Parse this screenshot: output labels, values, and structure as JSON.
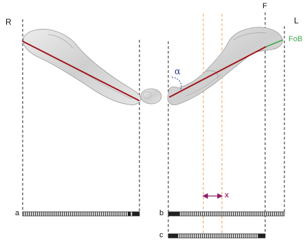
{
  "labels": {
    "right_side": "R",
    "left_side": "L",
    "femur_point": "F",
    "fob": "FoB",
    "angle": "α",
    "offset": "x",
    "scale_a": "a",
    "scale_b": "b",
    "scale_c": "c"
  },
  "colors": {
    "axis_line": "#a0161b",
    "fob_line": "#3fa84a",
    "guide_line": "#f0a050",
    "offset_arrow": "#8b1d6b",
    "offset_label": "#c0307a",
    "angle_arc": "#2a3a8c",
    "angle_label": "#2a3a8c",
    "bone": "#d4d4d4"
  }
}
